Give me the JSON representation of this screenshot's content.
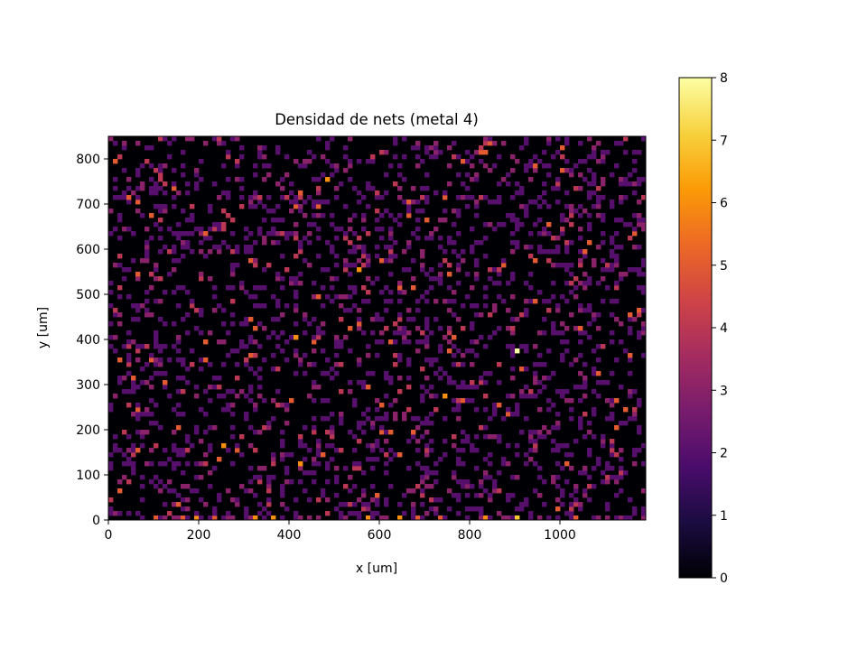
{
  "chart_data": {
    "type": "heatmap",
    "title": "Densidad de nets (metal 4)",
    "xlabel": "x [um]",
    "ylabel": "y [um]",
    "xlim": [
      0,
      1190
    ],
    "ylim": [
      0,
      850
    ],
    "grid": false,
    "cell_size": 10,
    "x_ticks": [
      0,
      200,
      400,
      600,
      800,
      1000
    ],
    "y_ticks": [
      0,
      100,
      200,
      300,
      400,
      500,
      600,
      700,
      800
    ],
    "colormap": {
      "name": "inferno",
      "vmin": 0,
      "vmax": 8,
      "ticks": [
        0,
        1,
        2,
        3,
        4,
        5,
        6,
        7,
        8
      ],
      "stops": [
        "#000004",
        "#1b0c41",
        "#4a0c6b",
        "#781c6d",
        "#a52c60",
        "#cf4446",
        "#ed6925",
        "#fb9b06",
        "#f7d13d",
        "#fcffa4"
      ]
    },
    "density_summary": "sparse net density per 10 um bin; most bins 0-2, scattered bins 3-7, peak value 8 near (905, 375); higher counts concentrated along bottom row y≈0-10",
    "notable_cells": [
      {
        "x": 905,
        "y": 375,
        "value": 8
      },
      {
        "x": 485,
        "y": 755,
        "value": 6
      },
      {
        "x": 555,
        "y": 555,
        "value": 6
      },
      {
        "x": 425,
        "y": 125,
        "value": 6
      },
      {
        "x": 255,
        "y": 165,
        "value": 6
      },
      {
        "x": 415,
        "y": 405,
        "value": 6
      },
      {
        "x": 745,
        "y": 275,
        "value": 6
      },
      {
        "x": 1045,
        "y": 425,
        "value": 5
      },
      {
        "x": 905,
        "y": 5,
        "value": 7
      },
      {
        "x": 835,
        "y": 5,
        "value": 6
      },
      {
        "x": 575,
        "y": 5,
        "value": 6
      },
      {
        "x": 325,
        "y": 5,
        "value": 6
      },
      {
        "x": 1065,
        "y": 615,
        "value": 5
      },
      {
        "x": 215,
        "y": 635,
        "value": 5
      },
      {
        "x": 1145,
        "y": 845,
        "value": 4
      }
    ]
  }
}
